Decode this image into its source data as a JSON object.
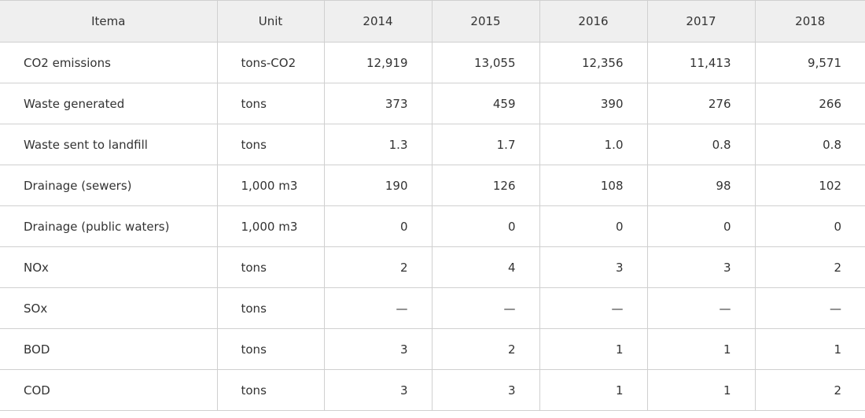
{
  "header": {
    "item": "Itema",
    "unit": "Unit",
    "years": [
      "2014",
      "2015",
      "2016",
      "2017",
      "2018"
    ]
  },
  "rows": [
    {
      "item": "CO2 emissions",
      "unit": "tons-CO2",
      "values": [
        "12,919",
        "13,055",
        "12,356",
        "11,413",
        "9,571"
      ]
    },
    {
      "item": "Waste generated",
      "unit": "tons",
      "values": [
        "373",
        "459",
        "390",
        "276",
        "266"
      ]
    },
    {
      "item": "Waste sent to landfill",
      "unit": "tons",
      "values": [
        "1.3",
        "1.7",
        "1.0",
        "0.8",
        "0.8"
      ]
    },
    {
      "item": "Drainage (sewers)",
      "unit": "1,000 m3",
      "values": [
        "190",
        "126",
        "108",
        "98",
        "102"
      ]
    },
    {
      "item": "Drainage (public waters)",
      "unit": "1,000 m3",
      "values": [
        "0",
        "0",
        "0",
        "0",
        "0"
      ]
    },
    {
      "item": "NOx",
      "unit": "tons",
      "values": [
        "2",
        "4",
        "3",
        "3",
        "2"
      ]
    },
    {
      "item": "SOx",
      "unit": "tons",
      "values": [
        "—",
        "—",
        "—",
        "—",
        "—"
      ]
    },
    {
      "item": "BOD",
      "unit": "tons",
      "values": [
        "3",
        "2",
        "1",
        "1",
        "1"
      ]
    },
    {
      "item": "COD",
      "unit": "tons",
      "values": [
        "3",
        "3",
        "1",
        "1",
        "2"
      ]
    }
  ]
}
